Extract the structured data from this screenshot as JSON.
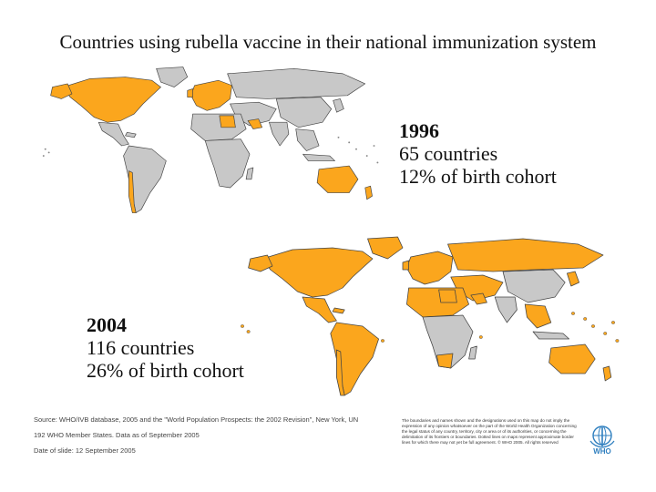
{
  "title": "Countries using rubella vaccine in their national immunization system",
  "colors": {
    "using_vaccine": "#FBA61D",
    "not_using": "#C8C8C8",
    "border": "#444444"
  },
  "panels": {
    "p1996": {
      "year": "1996",
      "countries": "65 countries",
      "cohort": "12% of birth cohort"
    },
    "p2004": {
      "year": "2004",
      "countries": "116 countries",
      "cohort": "26% of birth cohort"
    }
  },
  "footer": {
    "source": "Source: WHO/IVB database, 2005 and the \"World Population Prospects: the 2002 Revision\", New York, UN",
    "members": "192 WHO Member States. Data as of September 2005",
    "date": "Date of slide: 12 September 2005",
    "disclaimer": "The boundaries and names shown and the designations used on this map do not imply the expression of any opinion whatsoever on the part of the World Health Organization concerning the legal status of any country, territory, city or area or of its authorities, or concerning the delimitation of its frontiers or boundaries. Dotted lines on maps represent approximate border lines for which there may not yet be full agreement. © WHO 2005. All rights reserved"
  },
  "logo": {
    "icon": "who-emblem-icon",
    "text": "WHO"
  }
}
